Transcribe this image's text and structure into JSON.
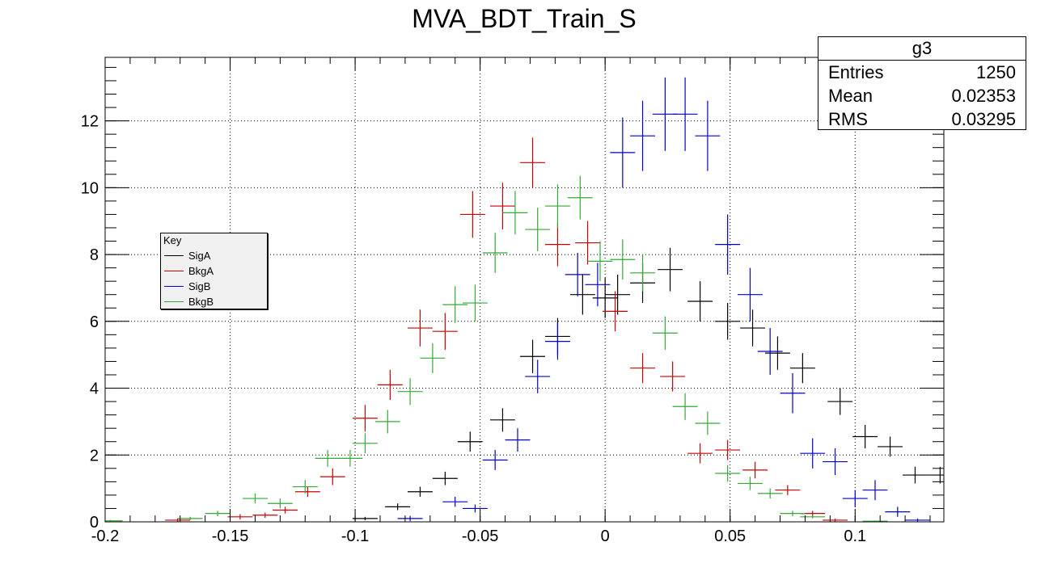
{
  "chart_data": {
    "type": "scatter",
    "title": "MVA_BDT_Train_S",
    "xlabel": "",
    "ylabel": "",
    "xlim": [
      -0.2,
      0.1355
    ],
    "ylim": [
      0,
      13.9
    ],
    "xticks": [
      "-0.2",
      "-0.15",
      "-0.1",
      "-0.05",
      "0",
      "0.05",
      "0.1"
    ],
    "yticks": [
      "0",
      "2",
      "4",
      "6",
      "8",
      "10",
      "12"
    ],
    "grid": true,
    "bin_width": 0.01,
    "series": [
      {
        "name": "SigA",
        "color": "#000000",
        "points": [
          {
            "x": -0.096,
            "y": 0.1,
            "err": 0.05
          },
          {
            "x": -0.083,
            "y": 0.45,
            "err": 0.1
          },
          {
            "x": -0.074,
            "y": 0.9,
            "err": 0.15
          },
          {
            "x": -0.064,
            "y": 1.3,
            "err": 0.2
          },
          {
            "x": -0.054,
            "y": 2.4,
            "err": 0.3
          },
          {
            "x": -0.041,
            "y": 3.05,
            "err": 0.35
          },
          {
            "x": -0.029,
            "y": 4.95,
            "err": 0.5
          },
          {
            "x": -0.019,
            "y": 5.55,
            "err": 0.55
          },
          {
            "x": -0.009,
            "y": 6.8,
            "err": 0.6
          },
          {
            "x": 0.0,
            "y": 6.7,
            "err": 0.6
          },
          {
            "x": 0.005,
            "y": 6.8,
            "err": 0.6
          },
          {
            "x": 0.015,
            "y": 7.15,
            "err": 0.6
          },
          {
            "x": 0.026,
            "y": 7.55,
            "err": 0.65
          },
          {
            "x": 0.038,
            "y": 6.6,
            "err": 0.6
          },
          {
            "x": 0.049,
            "y": 6.0,
            "err": 0.55
          },
          {
            "x": 0.059,
            "y": 5.8,
            "err": 0.55
          },
          {
            "x": 0.069,
            "y": 5.05,
            "err": 0.5
          },
          {
            "x": 0.079,
            "y": 4.6,
            "err": 0.45
          },
          {
            "x": 0.094,
            "y": 3.6,
            "err": 0.4
          },
          {
            "x": 0.104,
            "y": 2.55,
            "err": 0.35
          },
          {
            "x": 0.114,
            "y": 2.25,
            "err": 0.3
          },
          {
            "x": 0.124,
            "y": 1.4,
            "err": 0.25
          },
          {
            "x": 0.134,
            "y": 1.4,
            "err": 0.25
          }
        ]
      },
      {
        "name": "BkgA",
        "color": "#cc0000",
        "points": [
          {
            "x": -0.171,
            "y": 0.05,
            "err": 0.05
          },
          {
            "x": -0.146,
            "y": 0.15,
            "err": 0.08
          },
          {
            "x": -0.136,
            "y": 0.2,
            "err": 0.08
          },
          {
            "x": -0.128,
            "y": 0.35,
            "err": 0.1
          },
          {
            "x": -0.119,
            "y": 0.9,
            "err": 0.15
          },
          {
            "x": -0.109,
            "y": 1.35,
            "err": 0.25
          },
          {
            "x": -0.096,
            "y": 3.1,
            "err": 0.4
          },
          {
            "x": -0.086,
            "y": 4.1,
            "err": 0.45
          },
          {
            "x": -0.074,
            "y": 5.8,
            "err": 0.55
          },
          {
            "x": -0.064,
            "y": 5.7,
            "err": 0.55
          },
          {
            "x": -0.053,
            "y": 9.2,
            "err": 0.7
          },
          {
            "x": -0.041,
            "y": 9.45,
            "err": 0.7
          },
          {
            "x": -0.029,
            "y": 10.75,
            "err": 0.75
          },
          {
            "x": -0.019,
            "y": 8.3,
            "err": 0.65
          },
          {
            "x": -0.007,
            "y": 8.35,
            "err": 0.65
          },
          {
            "x": 0.004,
            "y": 6.3,
            "err": 0.6
          },
          {
            "x": 0.015,
            "y": 4.6,
            "err": 0.45
          },
          {
            "x": 0.027,
            "y": 4.35,
            "err": 0.45
          },
          {
            "x": 0.038,
            "y": 2.05,
            "err": 0.3
          },
          {
            "x": 0.049,
            "y": 2.15,
            "err": 0.3
          },
          {
            "x": 0.06,
            "y": 1.55,
            "err": 0.25
          },
          {
            "x": 0.073,
            "y": 0.95,
            "err": 0.15
          },
          {
            "x": 0.083,
            "y": 0.25,
            "err": 0.08
          },
          {
            "x": 0.092,
            "y": 0.05,
            "err": 0.05
          }
        ]
      },
      {
        "name": "SigB",
        "color": "#0000cc",
        "points": [
          {
            "x": -0.078,
            "y": 0.1,
            "err": 0.08
          },
          {
            "x": -0.06,
            "y": 0.6,
            "err": 0.15
          },
          {
            "x": -0.052,
            "y": 0.4,
            "err": 0.12
          },
          {
            "x": -0.044,
            "y": 1.85,
            "err": 0.3
          },
          {
            "x": -0.035,
            "y": 2.45,
            "err": 0.35
          },
          {
            "x": -0.027,
            "y": 4.35,
            "err": 0.5
          },
          {
            "x": -0.019,
            "y": 5.4,
            "err": 0.55
          },
          {
            "x": -0.011,
            "y": 7.4,
            "err": 0.65
          },
          {
            "x": -0.003,
            "y": 7.1,
            "err": 0.65
          },
          {
            "x": 0.007,
            "y": 11.05,
            "err": 1.05
          },
          {
            "x": 0.015,
            "y": 11.55,
            "err": 1.05
          },
          {
            "x": 0.024,
            "y": 12.2,
            "err": 1.1
          },
          {
            "x": 0.032,
            "y": 12.2,
            "err": 1.1
          },
          {
            "x": 0.041,
            "y": 11.55,
            "err": 1.05
          },
          {
            "x": 0.049,
            "y": 8.3,
            "err": 0.9
          },
          {
            "x": 0.058,
            "y": 6.8,
            "err": 0.8
          },
          {
            "x": 0.066,
            "y": 5.1,
            "err": 0.7
          },
          {
            "x": 0.075,
            "y": 3.85,
            "err": 0.6
          },
          {
            "x": 0.083,
            "y": 2.05,
            "err": 0.45
          },
          {
            "x": 0.092,
            "y": 1.8,
            "err": 0.4
          },
          {
            "x": 0.1,
            "y": 0.7,
            "err": 0.25
          },
          {
            "x": 0.108,
            "y": 0.95,
            "err": 0.3
          },
          {
            "x": 0.117,
            "y": 0.3,
            "err": 0.15
          },
          {
            "x": 0.125,
            "y": 0.05,
            "err": 0.05
          }
        ]
      },
      {
        "name": "BkgB",
        "color": "#33aa33",
        "points": [
          {
            "x": -0.198,
            "y": 0.03,
            "err": 0.03
          },
          {
            "x": -0.166,
            "y": 0.1,
            "err": 0.05
          },
          {
            "x": -0.155,
            "y": 0.25,
            "err": 0.08
          },
          {
            "x": -0.14,
            "y": 0.7,
            "err": 0.15
          },
          {
            "x": -0.13,
            "y": 0.55,
            "err": 0.15
          },
          {
            "x": -0.12,
            "y": 1.05,
            "err": 0.2
          },
          {
            "x": -0.111,
            "y": 1.9,
            "err": 0.25
          },
          {
            "x": -0.102,
            "y": 1.9,
            "err": 0.25
          },
          {
            "x": -0.096,
            "y": 2.35,
            "err": 0.3
          },
          {
            "x": -0.087,
            "y": 3.0,
            "err": 0.35
          },
          {
            "x": -0.078,
            "y": 3.9,
            "err": 0.4
          },
          {
            "x": -0.069,
            "y": 4.9,
            "err": 0.45
          },
          {
            "x": -0.06,
            "y": 6.5,
            "err": 0.55
          },
          {
            "x": -0.052,
            "y": 6.55,
            "err": 0.55
          },
          {
            "x": -0.044,
            "y": 8.05,
            "err": 0.6
          },
          {
            "x": -0.036,
            "y": 9.25,
            "err": 0.65
          },
          {
            "x": -0.027,
            "y": 8.75,
            "err": 0.65
          },
          {
            "x": -0.019,
            "y": 9.45,
            "err": 0.65
          },
          {
            "x": -0.01,
            "y": 9.7,
            "err": 0.65
          },
          {
            "x": -0.002,
            "y": 7.8,
            "err": 0.6
          },
          {
            "x": 0.007,
            "y": 7.85,
            "err": 0.6
          },
          {
            "x": 0.015,
            "y": 7.45,
            "err": 0.55
          },
          {
            "x": 0.024,
            "y": 5.65,
            "err": 0.5
          },
          {
            "x": 0.032,
            "y": 3.45,
            "err": 0.4
          },
          {
            "x": 0.041,
            "y": 2.95,
            "err": 0.35
          },
          {
            "x": 0.049,
            "y": 1.45,
            "err": 0.25
          },
          {
            "x": 0.058,
            "y": 1.15,
            "err": 0.2
          },
          {
            "x": 0.066,
            "y": 0.85,
            "err": 0.15
          },
          {
            "x": 0.075,
            "y": 0.25,
            "err": 0.08
          },
          {
            "x": 0.083,
            "y": 0.15,
            "err": 0.05
          },
          {
            "x": 0.108,
            "y": 0.02,
            "err": 0.02
          }
        ]
      }
    ],
    "legend": {
      "title": "Key",
      "placement": "left-middle",
      "entries": [
        "SigA",
        "BkgA",
        "SigB",
        "BkgB"
      ]
    },
    "stats": {
      "name": "g3",
      "rows": [
        {
          "label": "Entries",
          "value": "1250"
        },
        {
          "label": "Mean",
          "value": "0.02353"
        },
        {
          "label": "RMS",
          "value": "0.03295"
        }
      ]
    }
  }
}
